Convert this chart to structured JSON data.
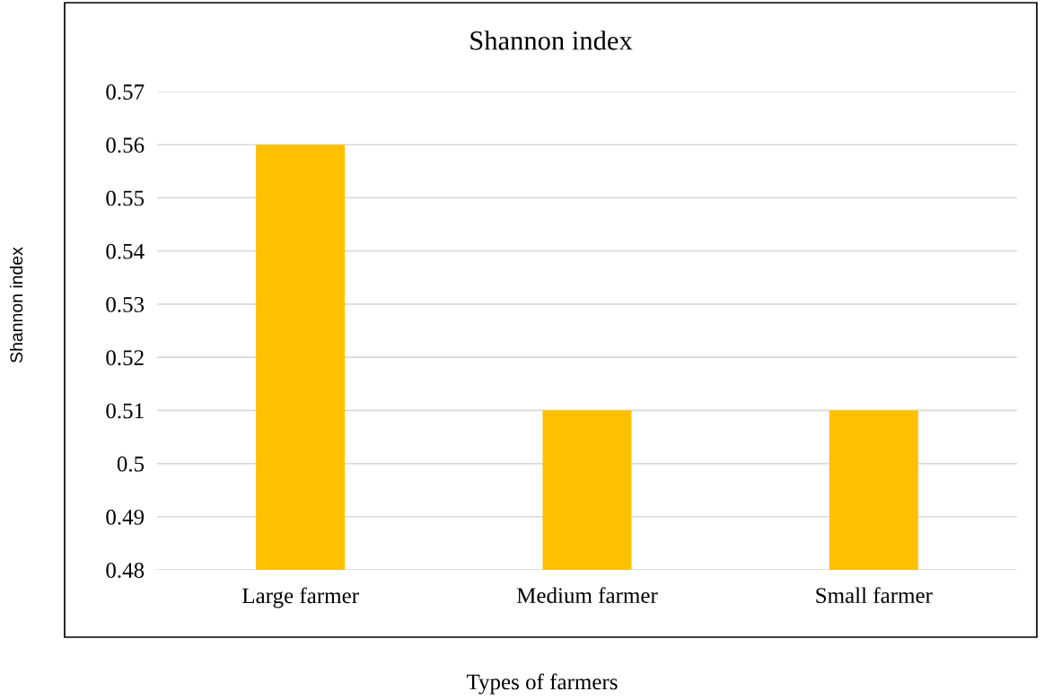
{
  "chart_data": {
    "type": "bar",
    "title": "Shannon index",
    "xlabel": "Types of farmers",
    "ylabel": "Shannon index",
    "categories": [
      "Large farmer",
      "Medium farmer",
      "Small farmer"
    ],
    "values": [
      0.56,
      0.51,
      0.51
    ],
    "color": "#ffc000",
    "ylim": [
      0.48,
      0.57
    ],
    "yticks": [
      0.48,
      0.49,
      0.5,
      0.51,
      0.52,
      0.53,
      0.54,
      0.55,
      0.56,
      0.57
    ],
    "grid": "y"
  }
}
